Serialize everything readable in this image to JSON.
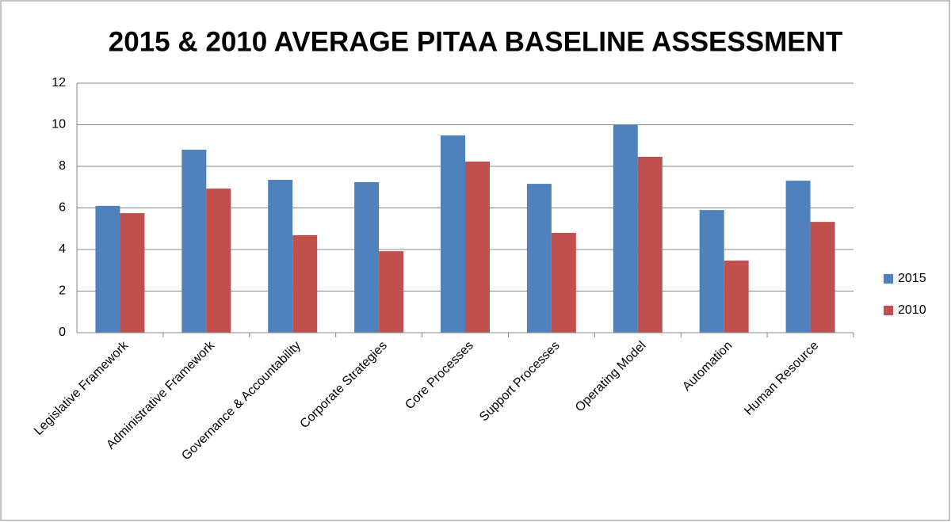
{
  "chart_data": {
    "type": "bar",
    "title": "2015 & 2010 AVERAGE PITAA BASELINE ASSESSMENT",
    "categories": [
      "Legislative Framework",
      "Administrative Framework",
      "Governance & Accountability",
      "Corporate Strategies",
      "Core Processes",
      "Support Processes",
      "Operating Model",
      "Automation",
      "Human Resource"
    ],
    "series": [
      {
        "name": "2015",
        "color": "#4f81bd",
        "values": [
          6.1,
          8.8,
          7.35,
          7.24,
          9.49,
          7.16,
          10.0,
          5.9,
          7.31
        ]
      },
      {
        "name": "2010",
        "color": "#c0504d",
        "values": [
          5.75,
          6.93,
          4.69,
          3.92,
          8.23,
          4.8,
          8.46,
          3.47,
          5.33
        ]
      }
    ],
    "ylim": [
      0,
      12
    ],
    "yticks": [
      0,
      2,
      4,
      6,
      8,
      10,
      12
    ],
    "grid": true,
    "legend": "right"
  }
}
